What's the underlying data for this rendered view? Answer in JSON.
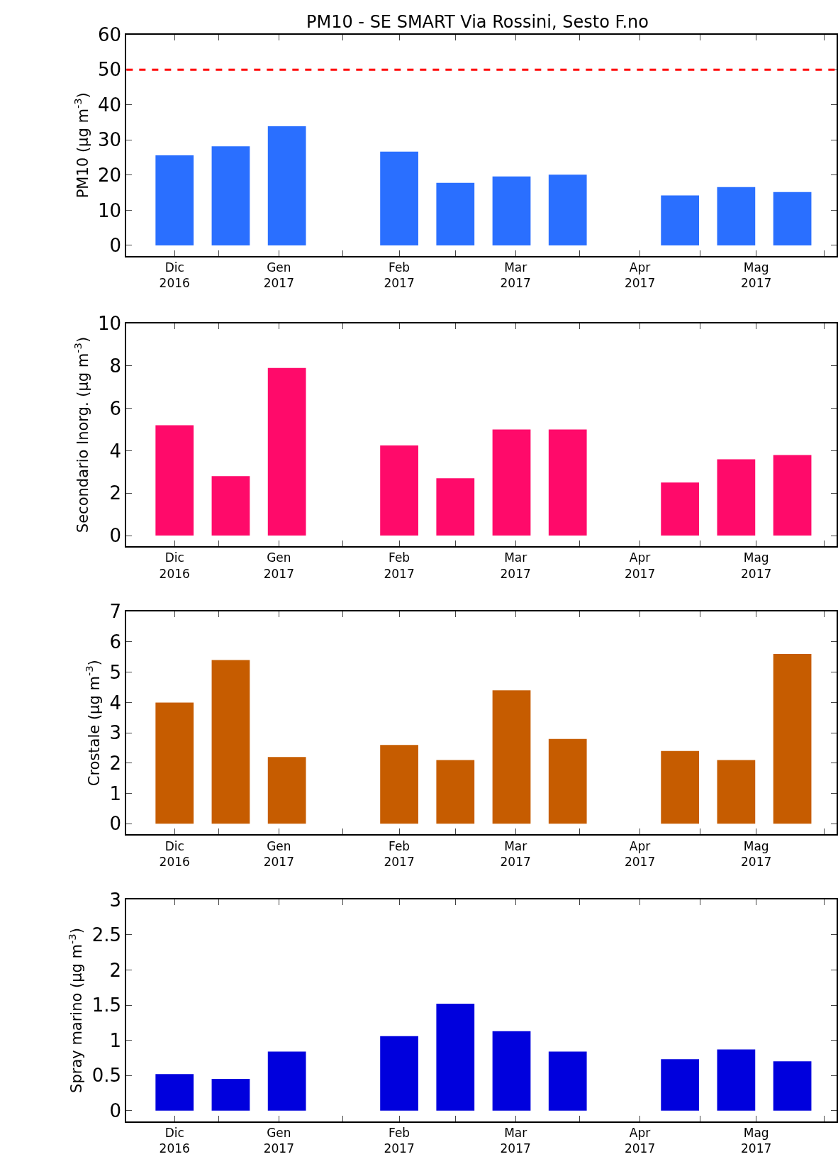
{
  "chart_data": [
    {
      "type": "bar",
      "title": "PM10 - SE SMART Via Rossini, Sesto F.no",
      "ylabel": "PM10 (μg m$^{-3}$)",
      "x": [
        "2016-12-21",
        "2017-01-04",
        "2017-01-18",
        "2017-02-15",
        "2017-03-01",
        "2017-03-15",
        "2017-03-29",
        "2017-04-26",
        "2017-05-10",
        "2017-05-24"
      ],
      "values": [
        25.6,
        28.2,
        33.9,
        26.7,
        17.8,
        19.6,
        20.1,
        14.2,
        16.6,
        15.2
      ],
      "color": "#2a6fff",
      "xlim": [
        "2016-12-09",
        "2017-06-04"
      ],
      "xticks": [
        {
          "value": "2017-01-01",
          "label": null
        },
        {
          "value": "2017-02-01",
          "label": null
        },
        {
          "value": "2017-03-01",
          "label": null
        },
        {
          "value": "2017-04-01",
          "label": null
        },
        {
          "value": "2017-05-01",
          "label": null
        },
        {
          "value": "2017-06-01",
          "label": null
        },
        {
          "value": "2016-12-21",
          "label": "Dic\n2016"
        },
        {
          "value": "2017-01-16",
          "label": "Gen\n2017"
        },
        {
          "value": "2017-02-15",
          "label": "Feb\n2017"
        },
        {
          "value": "2017-03-16",
          "label": "Mar\n2017"
        },
        {
          "value": "2017-04-16",
          "label": "Apr\n2017"
        },
        {
          "value": "2017-05-15",
          "label": "Mag\n2017"
        }
      ],
      "ylim": [
        -3,
        60
      ],
      "yticks": [
        0,
        10,
        20,
        30,
        40,
        50,
        60
      ],
      "ref_lines": [
        {
          "axis": "y",
          "value": 50,
          "color": "#ff0000",
          "line_style": "dashed"
        }
      ]
    },
    {
      "type": "bar",
      "ylabel": "Secondario Inorg. (μg m$^{-3}$)",
      "x": [
        "2016-12-21",
        "2017-01-04",
        "2017-01-18",
        "2017-02-15",
        "2017-03-01",
        "2017-03-15",
        "2017-03-29",
        "2017-04-26",
        "2017-05-10",
        "2017-05-24"
      ],
      "values": [
        5.2,
        2.8,
        7.9,
        4.25,
        2.7,
        5.0,
        5.0,
        2.5,
        3.6,
        3.8
      ],
      "color": "#ff0a6a",
      "xlim": [
        "2016-12-09",
        "2017-06-04"
      ],
      "xticks": [
        {
          "value": "2017-01-01",
          "label": null
        },
        {
          "value": "2017-02-01",
          "label": null
        },
        {
          "value": "2017-03-01",
          "label": null
        },
        {
          "value": "2017-04-01",
          "label": null
        },
        {
          "value": "2017-05-01",
          "label": null
        },
        {
          "value": "2017-06-01",
          "label": null
        },
        {
          "value": "2016-12-21",
          "label": "Dic\n2016"
        },
        {
          "value": "2017-01-16",
          "label": "Gen\n2017"
        },
        {
          "value": "2017-02-15",
          "label": "Feb\n2017"
        },
        {
          "value": "2017-03-16",
          "label": "Mar\n2017"
        },
        {
          "value": "2017-04-16",
          "label": "Apr\n2017"
        },
        {
          "value": "2017-05-15",
          "label": "Mag\n2017"
        }
      ],
      "ylim": [
        -0.5,
        10
      ],
      "yticks": [
        0,
        2,
        4,
        6,
        8,
        10
      ]
    },
    {
      "type": "bar",
      "ylabel": "Crostale (μg m$^{-3}$)",
      "x": [
        "2016-12-21",
        "2017-01-04",
        "2017-01-18",
        "2017-02-15",
        "2017-03-01",
        "2017-03-15",
        "2017-03-29",
        "2017-04-26",
        "2017-05-10",
        "2017-05-24"
      ],
      "values": [
        4.0,
        5.4,
        2.2,
        2.6,
        2.1,
        4.4,
        2.8,
        2.4,
        2.1,
        5.6
      ],
      "color": "#c65c00",
      "xlim": [
        "2016-12-09",
        "2017-06-04"
      ],
      "xticks": [
        {
          "value": "2017-01-01",
          "label": null
        },
        {
          "value": "2017-02-01",
          "label": null
        },
        {
          "value": "2017-03-01",
          "label": null
        },
        {
          "value": "2017-04-01",
          "label": null
        },
        {
          "value": "2017-05-01",
          "label": null
        },
        {
          "value": "2017-06-01",
          "label": null
        },
        {
          "value": "2016-12-21",
          "label": "Dic\n2016"
        },
        {
          "value": "2017-01-16",
          "label": "Gen\n2017"
        },
        {
          "value": "2017-02-15",
          "label": "Feb\n2017"
        },
        {
          "value": "2017-03-16",
          "label": "Mar\n2017"
        },
        {
          "value": "2017-04-16",
          "label": "Apr\n2017"
        },
        {
          "value": "2017-05-15",
          "label": "Mag\n2017"
        }
      ],
      "ylim": [
        -0.35,
        7
      ],
      "yticks": [
        0,
        1,
        2,
        3,
        4,
        5,
        6,
        7
      ]
    },
    {
      "type": "bar",
      "ylabel": "Spray marino (μg m$^{-3}$)",
      "x": [
        "2016-12-21",
        "2017-01-04",
        "2017-01-18",
        "2017-02-15",
        "2017-03-01",
        "2017-03-15",
        "2017-03-29",
        "2017-04-26",
        "2017-05-10",
        "2017-05-24"
      ],
      "values": [
        0.52,
        0.45,
        0.84,
        1.06,
        1.52,
        1.13,
        0.84,
        0.73,
        0.87,
        0.7
      ],
      "color": "#0000dd",
      "xlim": [
        "2016-12-09",
        "2017-06-04"
      ],
      "xticks": [
        {
          "value": "2017-01-01",
          "label": null
        },
        {
          "value": "2017-02-01",
          "label": null
        },
        {
          "value": "2017-03-01",
          "label": null
        },
        {
          "value": "2017-04-01",
          "label": null
        },
        {
          "value": "2017-05-01",
          "label": null
        },
        {
          "value": "2017-06-01",
          "label": null
        },
        {
          "value": "2016-12-21",
          "label": "Dic\n2016"
        },
        {
          "value": "2017-01-16",
          "label": "Gen\n2017"
        },
        {
          "value": "2017-02-15",
          "label": "Feb\n2017"
        },
        {
          "value": "2017-03-16",
          "label": "Mar\n2017"
        },
        {
          "value": "2017-04-16",
          "label": "Apr\n2017"
        },
        {
          "value": "2017-05-15",
          "label": "Mag\n2017"
        }
      ],
      "ylim": [
        -0.15,
        3
      ],
      "yticks": [
        0,
        0.5,
        1,
        1.5,
        2,
        2.5,
        3
      ]
    }
  ]
}
